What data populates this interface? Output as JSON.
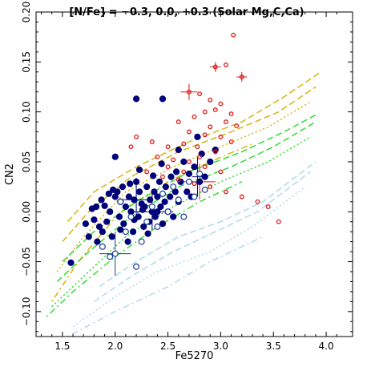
{
  "chart_data": {
    "type": "scatter",
    "title": "[N/Fe] = −0.3, 0.0, +0.3  (Solar Mg,C,Ca)",
    "xlabel": "Fe5270",
    "ylabel": "CN2",
    "xlim": [
      1.25,
      4.25
    ],
    "ylim": [
      -0.125,
      0.2
    ],
    "x_ticks": [
      1.5,
      2.0,
      2.5,
      3.0,
      3.5,
      4.0
    ],
    "x_tick_labels": [
      "1.5",
      "2.0",
      "2.5",
      "3.0",
      "3.5",
      "4.0"
    ],
    "y_ticks": [
      -0.1,
      -0.05,
      0.0,
      0.05,
      0.1,
      0.15,
      0.2
    ],
    "y_tick_labels": [
      "−0.10",
      "−0.05",
      "0.00",
      "0.05",
      "0.10",
      "0.15",
      "0.20"
    ],
    "grid": false,
    "colors": {
      "filled": "#00007a",
      "open": "#1a3c9c",
      "red": "#e01818",
      "gold": "#d4b000",
      "green": "#22dd22",
      "lightblue": "#a8d8e8"
    },
    "series": [
      {
        "marker": "filled-circle",
        "color": "#00007a",
        "points": [
          [
            1.58,
            -0.051
          ],
          [
            1.72,
            -0.012
          ],
          [
            1.75,
            -0.025
          ],
          [
            1.78,
            0.003
          ],
          [
            1.8,
            -0.008
          ],
          [
            1.82,
            0.005
          ],
          [
            1.83,
            -0.03
          ],
          [
            1.85,
            -0.015
          ],
          [
            1.87,
            0.012
          ],
          [
            1.88,
            -0.02
          ],
          [
            1.9,
            0.006
          ],
          [
            1.92,
            -0.01
          ],
          [
            1.94,
            0.018
          ],
          [
            1.95,
            0.0
          ],
          [
            1.97,
            -0.025
          ],
          [
            2.0,
            0.015
          ],
          [
            2.0,
            0.055
          ],
          [
            2.02,
            0.02
          ],
          [
            2.04,
            -0.005
          ],
          [
            2.05,
            0.01
          ],
          [
            2.07,
            0.025
          ],
          [
            2.08,
            -0.012
          ],
          [
            2.1,
            0.005
          ],
          [
            2.12,
            -0.03
          ],
          [
            2.13,
            0.015
          ],
          [
            2.15,
            0.0
          ],
          [
            2.17,
            -0.02
          ],
          [
            2.18,
            0.012
          ],
          [
            2.2,
            0.113
          ],
          [
            2.2,
            0.03
          ],
          [
            2.22,
            -0.005
          ],
          [
            2.23,
            0.02
          ],
          [
            2.25,
            0.008
          ],
          [
            2.27,
            -0.015
          ],
          [
            2.28,
            0.005
          ],
          [
            2.3,
            0.025
          ],
          [
            2.32,
            -0.01
          ],
          [
            2.33,
            0.012
          ],
          [
            2.35,
            0.0
          ],
          [
            2.37,
            0.02
          ],
          [
            2.38,
            -0.005
          ],
          [
            2.4,
            0.015
          ],
          [
            2.42,
            0.03
          ],
          [
            2.43,
            0.005
          ],
          [
            2.45,
            0.113
          ],
          [
            2.45,
            -0.012
          ],
          [
            2.47,
            0.01
          ],
          [
            2.48,
            0.025
          ],
          [
            2.5,
            0.0
          ],
          [
            2.52,
            0.015
          ],
          [
            2.53,
            0.035
          ],
          [
            2.55,
            -0.005
          ],
          [
            2.57,
            0.02
          ],
          [
            2.58,
            0.04
          ],
          [
            2.6,
            0.01
          ],
          [
            2.62,
            0.03
          ],
          [
            2.65,
            0.05
          ],
          [
            2.68,
            0.02
          ],
          [
            2.7,
            0.038
          ],
          [
            2.72,
            0.015
          ],
          [
            2.75,
            0.045
          ],
          [
            2.78,
            0.075
          ],
          [
            2.8,
            0.03
          ],
          [
            2.82,
            0.058
          ],
          [
            2.85,
            0.035
          ],
          [
            2.9,
            0.05
          ],
          [
            2.95,
            0.062
          ],
          [
            2.23,
            0.042
          ],
          [
            2.14,
            0.028
          ],
          [
            2.36,
            0.036
          ],
          [
            2.44,
            0.048
          ],
          [
            2.6,
            0.062
          ],
          [
            2.18,
            -0.008
          ],
          [
            2.26,
            0.002
          ],
          [
            2.31,
            -0.022
          ],
          [
            2.05,
            -0.018
          ],
          [
            1.98,
            0.022
          ],
          [
            2.4,
            0.0
          ]
        ]
      },
      {
        "marker": "open-circle",
        "color": "#1a3c9c",
        "points": [
          [
            1.95,
            -0.045
          ],
          [
            2.0,
            -0.042
          ],
          [
            2.1,
            -0.02
          ],
          [
            2.2,
            -0.055
          ],
          [
            2.25,
            -0.03
          ],
          [
            2.3,
            -0.01
          ],
          [
            2.35,
            0.005
          ],
          [
            2.4,
            -0.015
          ],
          [
            2.45,
            0.018
          ],
          [
            2.5,
            0.0
          ],
          [
            2.55,
            0.025
          ],
          [
            2.6,
            0.012
          ],
          [
            2.65,
            -0.005
          ],
          [
            2.7,
            0.03
          ],
          [
            2.75,
            0.015
          ],
          [
            2.8,
            0.038
          ],
          [
            2.85,
            0.022
          ],
          [
            1.88,
            -0.035
          ],
          [
            2.15,
            -0.005
          ],
          [
            2.05,
            0.01
          ]
        ]
      },
      {
        "marker": "red-open-circle",
        "color": "#e01818",
        "points": [
          [
            3.12,
            0.177
          ],
          [
            2.95,
            0.145
          ],
          [
            3.05,
            0.147
          ],
          [
            3.2,
            0.135
          ],
          [
            2.7,
            0.12
          ],
          [
            2.8,
            0.118
          ],
          [
            2.9,
            0.112
          ],
          [
            3.0,
            0.108
          ],
          [
            2.85,
            0.1
          ],
          [
            2.95,
            0.102
          ],
          [
            3.1,
            0.098
          ],
          [
            2.75,
            0.095
          ],
          [
            3.05,
            0.09
          ],
          [
            2.6,
            0.09
          ],
          [
            2.9,
            0.085
          ],
          [
            3.15,
            0.086
          ],
          [
            2.7,
            0.08
          ],
          [
            2.85,
            0.077
          ],
          [
            3.0,
            0.075
          ],
          [
            2.2,
            0.075
          ],
          [
            2.35,
            0.07
          ],
          [
            2.5,
            0.065
          ],
          [
            2.65,
            0.068
          ],
          [
            2.78,
            0.065
          ],
          [
            2.95,
            0.06
          ],
          [
            2.4,
            0.055
          ],
          [
            2.55,
            0.052
          ],
          [
            2.7,
            0.05
          ],
          [
            2.85,
            0.045
          ],
          [
            3.0,
            0.04
          ],
          [
            2.3,
            0.04
          ],
          [
            2.45,
            0.035
          ],
          [
            2.6,
            0.032
          ],
          [
            2.75,
            0.028
          ],
          [
            2.9,
            0.025
          ],
          [
            3.05,
            0.02
          ],
          [
            3.2,
            0.015
          ],
          [
            3.35,
            0.01
          ],
          [
            3.45,
            0.005
          ],
          [
            3.55,
            -0.01
          ],
          [
            2.5,
            0.045
          ],
          [
            2.65,
            0.04
          ],
          [
            2.8,
            0.055
          ],
          [
            2.15,
            0.065
          ],
          [
            3.1,
            0.07
          ]
        ]
      }
    ],
    "error_bars": [
      {
        "x": 2.0,
        "y": -0.042,
        "xerr": 0.15,
        "yerr": 0.022,
        "color": "#1a3c9c"
      },
      {
        "x": 2.2,
        "y": 0.012,
        "xerr": 0.15,
        "yerr": 0.022,
        "color": "#00007a"
      },
      {
        "x": 2.35,
        "y": 0.0,
        "xerr": 0.2,
        "yerr": 0.018,
        "color": "#00007a"
      },
      {
        "x": 2.7,
        "y": 0.12,
        "xerr": 0.08,
        "yerr": 0.008,
        "color": "#e01818"
      },
      {
        "x": 2.95,
        "y": 0.145,
        "xerr": 0.05,
        "yerr": 0.005,
        "color": "#e01818"
      },
      {
        "x": 3.2,
        "y": 0.135,
        "xerr": 0.05,
        "yerr": 0.005,
        "color": "#e01818"
      },
      {
        "x": 2.8,
        "y": 0.03,
        "xerr": 0.15,
        "yerr": 0.018,
        "color": "#e01818"
      },
      {
        "x": 2.78,
        "y": 0.035,
        "xerr": 0.05,
        "yerr": 0.02,
        "color": "#00007a"
      }
    ],
    "model_curves": [
      {
        "color": "#d4b000",
        "dash": "8,4",
        "points": [
          [
            1.55,
            -0.01
          ],
          [
            1.8,
            0.02
          ],
          [
            2.2,
            0.045
          ],
          [
            2.7,
            0.07
          ],
          [
            3.2,
            0.09
          ],
          [
            3.6,
            0.115
          ],
          [
            3.95,
            0.14
          ]
        ]
      },
      {
        "color": "#d4b000",
        "dash": "8,4",
        "points": [
          [
            1.5,
            -0.03
          ],
          [
            1.75,
            0.0
          ],
          [
            2.15,
            0.035
          ],
          [
            2.6,
            0.06
          ],
          [
            3.1,
            0.08
          ],
          [
            3.55,
            0.1
          ],
          [
            3.9,
            0.125
          ]
        ]
      },
      {
        "color": "#d4b000",
        "dash": "2,3",
        "points": [
          [
            1.45,
            -0.06
          ],
          [
            1.7,
            -0.025
          ],
          [
            2.1,
            0.02
          ],
          [
            2.55,
            0.045
          ],
          [
            3.0,
            0.065
          ],
          [
            3.45,
            0.085
          ],
          [
            3.85,
            0.11
          ]
        ]
      },
      {
        "color": "#d4b000",
        "dash": "2,4,8,4",
        "points": [
          [
            1.4,
            -0.09
          ],
          [
            1.65,
            -0.05
          ],
          [
            2.05,
            0.0
          ],
          [
            2.5,
            0.03
          ],
          [
            2.9,
            0.05
          ],
          [
            3.3,
            0.068
          ]
        ]
      },
      {
        "color": "#22dd22",
        "dash": "8,4",
        "points": [
          [
            1.5,
            -0.05
          ],
          [
            1.8,
            -0.02
          ],
          [
            2.2,
            0.01
          ],
          [
            2.7,
            0.04
          ],
          [
            3.2,
            0.06
          ],
          [
            3.6,
            0.08
          ],
          [
            3.92,
            0.098
          ]
        ]
      },
      {
        "color": "#22dd22",
        "dash": "8,4",
        "points": [
          [
            1.45,
            -0.07
          ],
          [
            1.75,
            -0.04
          ],
          [
            2.15,
            -0.005
          ],
          [
            2.6,
            0.025
          ],
          [
            3.1,
            0.045
          ],
          [
            3.5,
            0.065
          ],
          [
            3.9,
            0.09
          ]
        ]
      },
      {
        "color": "#22dd22",
        "dash": "2,3",
        "points": [
          [
            1.4,
            -0.095
          ],
          [
            1.7,
            -0.065
          ],
          [
            2.1,
            -0.025
          ],
          [
            2.55,
            0.005
          ],
          [
            3.0,
            0.03
          ],
          [
            3.45,
            0.05
          ],
          [
            3.85,
            0.075
          ]
        ]
      },
      {
        "color": "#22dd22",
        "dash": "2,4,8,4",
        "points": [
          [
            1.35,
            -0.105
          ],
          [
            1.6,
            -0.08
          ],
          [
            2.0,
            -0.045
          ],
          [
            2.4,
            -0.015
          ],
          [
            2.8,
            0.01
          ],
          [
            3.2,
            0.03
          ]
        ]
      },
      {
        "color": "#a8d8e8",
        "dash": "8,4",
        "points": [
          [
            1.85,
            -0.075
          ],
          [
            2.2,
            -0.05
          ],
          [
            2.6,
            -0.025
          ],
          [
            3.0,
            -0.01
          ],
          [
            3.4,
            0.01
          ],
          [
            3.9,
            0.05
          ]
        ]
      },
      {
        "color": "#a8d8e8",
        "dash": "8,4",
        "points": [
          [
            1.8,
            -0.09
          ],
          [
            2.15,
            -0.065
          ],
          [
            2.55,
            -0.04
          ],
          [
            2.95,
            -0.02
          ],
          [
            3.35,
            0.0
          ],
          [
            3.85,
            0.04
          ]
        ]
      },
      {
        "color": "#a8d8e8",
        "dash": "2,3",
        "points": [
          [
            1.6,
            -0.115
          ],
          [
            2.0,
            -0.085
          ],
          [
            2.4,
            -0.06
          ],
          [
            2.9,
            -0.04
          ],
          [
            3.3,
            -0.015
          ],
          [
            3.8,
            0.025
          ]
        ]
      },
      {
        "color": "#a8d8e8",
        "dash": "2,4,8,4",
        "points": [
          [
            1.55,
            -0.125
          ],
          [
            2.0,
            -0.1
          ],
          [
            2.5,
            -0.075
          ],
          [
            2.9,
            -0.05
          ],
          [
            3.4,
            -0.025
          ]
        ]
      }
    ]
  }
}
